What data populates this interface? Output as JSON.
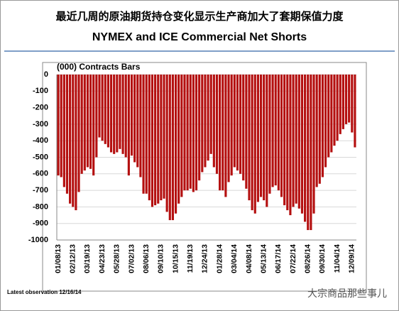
{
  "chart_data": {
    "type": "bar",
    "title": "最近几周的原油期货持仓变化显示生产商加大了套期保值力度",
    "subtitle": "NYMEX and ICE Commercial Net Shorts",
    "y_label": "(000) Contracts Bars",
    "note": "Latest observation 12/16/14",
    "watermark": "大宗商品那些事儿",
    "categories": [
      "01/08/13",
      null,
      null,
      null,
      null,
      "02/12/13",
      null,
      null,
      null,
      null,
      "03/19/13",
      null,
      null,
      null,
      null,
      "04/23/13",
      null,
      null,
      null,
      null,
      "05/28/13",
      null,
      null,
      null,
      null,
      "07/02/13",
      null,
      null,
      null,
      null,
      "08/06/13",
      null,
      null,
      null,
      null,
      "09/10/13",
      null,
      null,
      null,
      null,
      "10/15/13",
      null,
      null,
      null,
      null,
      "11/19/13",
      null,
      null,
      null,
      null,
      "12/24/13",
      null,
      null,
      null,
      null,
      "01/28/14",
      null,
      null,
      null,
      null,
      "03/04/14",
      null,
      null,
      null,
      null,
      "04/08/14",
      null,
      null,
      null,
      null,
      "05/13/14",
      null,
      null,
      null,
      null,
      "06/17/14",
      null,
      null,
      null,
      null,
      "07/22/14",
      null,
      null,
      null,
      null,
      "08/26/14",
      null,
      null,
      null,
      null,
      "09/30/14",
      null,
      null,
      null,
      null,
      "11/04/14",
      null,
      null,
      null,
      null,
      "12/09/14",
      null
    ],
    "values": [
      -610,
      -620,
      -680,
      -720,
      -780,
      -800,
      -820,
      -710,
      -600,
      -580,
      -560,
      -570,
      -610,
      -500,
      -380,
      -400,
      -420,
      -440,
      -470,
      -480,
      -470,
      -450,
      -480,
      -500,
      -610,
      -490,
      -530,
      -560,
      -620,
      -720,
      -720,
      -760,
      -800,
      -790,
      -780,
      -760,
      -750,
      -830,
      -880,
      -880,
      -840,
      -780,
      -740,
      -700,
      -700,
      -690,
      -710,
      -700,
      -640,
      -590,
      -560,
      -520,
      -480,
      -560,
      -600,
      -700,
      -700,
      -740,
      -650,
      -610,
      -560,
      -580,
      -600,
      -640,
      -690,
      -760,
      -820,
      -840,
      -770,
      -740,
      -760,
      -800,
      -720,
      -680,
      -670,
      -700,
      -740,
      -790,
      -820,
      -850,
      -800,
      -780,
      -810,
      -840,
      -890,
      -940,
      -940,
      -840,
      -680,
      -660,
      -620,
      -560,
      -500,
      -470,
      -430,
      -400,
      -360,
      -330,
      -300,
      -290,
      -350,
      -440
    ],
    "color": "#b40f0f",
    "ylim": [
      -1000,
      0
    ],
    "yticks": [
      0,
      -100,
      -200,
      -300,
      -400,
      -500,
      -600,
      -700,
      -800,
      -900,
      -1000
    ],
    "grid": true
  }
}
